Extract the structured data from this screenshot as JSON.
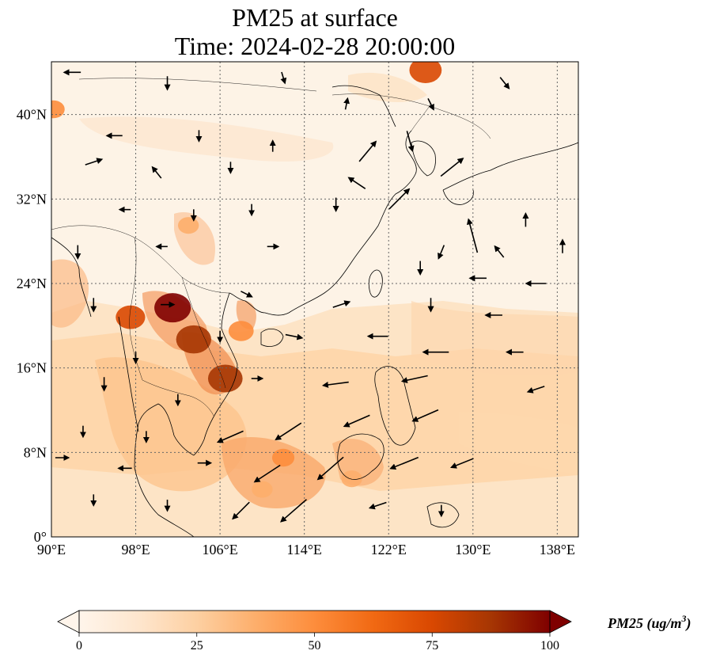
{
  "title": {
    "line1": "PM25 at surface",
    "line2": "Time: 2024-02-28 20:00:00"
  },
  "map": {
    "lon_range": [
      90,
      140
    ],
    "lat_range": [
      0,
      45
    ],
    "lon_ticks": [
      90,
      98,
      106,
      114,
      122,
      130,
      138
    ],
    "lat_ticks": [
      0,
      8,
      16,
      24,
      32,
      40
    ],
    "lon_tick_labels": [
      "90°E",
      "98°E",
      "106°E",
      "114°E",
      "122°E",
      "130°E",
      "138°E"
    ],
    "lat_tick_labels": [
      "0°",
      "8°N",
      "16°N",
      "24°N",
      "32°N",
      "40°N"
    ],
    "grid": true,
    "field": "PM25 concentration with surface wind vectors",
    "hotspots": [
      {
        "lon": 101.5,
        "lat": 21.7,
        "value": 95
      },
      {
        "lon": 103.5,
        "lat": 18.7,
        "value": 90
      },
      {
        "lon": 106.5,
        "lat": 15.0,
        "value": 88
      },
      {
        "lon": 97.5,
        "lat": 20.8,
        "value": 70
      },
      {
        "lon": 112.0,
        "lat": 7.5,
        "value": 45
      },
      {
        "lon": 110.0,
        "lat": 4.5,
        "value": 40
      },
      {
        "lon": 118.5,
        "lat": 5.5,
        "value": 40
      },
      {
        "lon": 103.0,
        "lat": 29.5,
        "value": 40
      },
      {
        "lon": 108.0,
        "lat": 19.5,
        "value": 55
      },
      {
        "lon": 125.5,
        "lat": 44.2,
        "value": 80
      },
      {
        "lon": 90.2,
        "lat": 40.5,
        "value": 45
      }
    ],
    "wind_vectors": [
      {
        "lon": 92.0,
        "lat": 44.0,
        "u": -1.5,
        "v": 0.0
      },
      {
        "lon": 101.0,
        "lat": 43.0,
        "u": 0.0,
        "v": -1.2
      },
      {
        "lon": 112.0,
        "lat": 43.5,
        "u": 0.3,
        "v": -1.0
      },
      {
        "lon": 118.0,
        "lat": 41.0,
        "u": 0.2,
        "v": 1.0
      },
      {
        "lon": 126.0,
        "lat": 41.0,
        "u": 0.5,
        "v": -1.0
      },
      {
        "lon": 133.0,
        "lat": 43.0,
        "u": 0.8,
        "v": -1.0
      },
      {
        "lon": 96.0,
        "lat": 38.0,
        "u": -1.4,
        "v": 0.0
      },
      {
        "lon": 104.0,
        "lat": 38.0,
        "u": 0.0,
        "v": -1.0
      },
      {
        "lon": 111.0,
        "lat": 37.0,
        "u": 0.0,
        "v": 1.0
      },
      {
        "lon": 120.0,
        "lat": 36.5,
        "u": 1.5,
        "v": 1.8
      },
      {
        "lon": 124.0,
        "lat": 37.5,
        "u": 0.5,
        "v": -1.8
      },
      {
        "lon": 128.0,
        "lat": 35.0,
        "u": 2.0,
        "v": 1.6
      },
      {
        "lon": 94.0,
        "lat": 35.5,
        "u": 1.5,
        "v": 0.5
      },
      {
        "lon": 100.0,
        "lat": 34.5,
        "u": -0.8,
        "v": 1.0
      },
      {
        "lon": 107.0,
        "lat": 35.0,
        "u": 0.0,
        "v": -1.0
      },
      {
        "lon": 119.0,
        "lat": 33.5,
        "u": -1.5,
        "v": 1.0
      },
      {
        "lon": 123.0,
        "lat": 32.0,
        "u": 1.8,
        "v": 1.8
      },
      {
        "lon": 130.0,
        "lat": 28.5,
        "u": -0.8,
        "v": 3.0
      },
      {
        "lon": 135.0,
        "lat": 30.0,
        "u": 0.0,
        "v": 1.2
      },
      {
        "lon": 97.0,
        "lat": 31.0,
        "u": -1.0,
        "v": 0.0
      },
      {
        "lon": 103.5,
        "lat": 30.5,
        "u": 0.0,
        "v": -1.0
      },
      {
        "lon": 109.0,
        "lat": 31.0,
        "u": 0.0,
        "v": -1.0
      },
      {
        "lon": 117.0,
        "lat": 31.5,
        "u": 0.0,
        "v": -1.2
      },
      {
        "lon": 127.0,
        "lat": 27.0,
        "u": -0.5,
        "v": -1.2
      },
      {
        "lon": 132.5,
        "lat": 27.0,
        "u": -0.8,
        "v": 1.0
      },
      {
        "lon": 138.5,
        "lat": 27.5,
        "u": 0.0,
        "v": 1.2
      },
      {
        "lon": 92.5,
        "lat": 27.0,
        "u": 0.0,
        "v": -1.2
      },
      {
        "lon": 100.5,
        "lat": 27.5,
        "u": -1.0,
        "v": 0.0
      },
      {
        "lon": 111.0,
        "lat": 27.5,
        "u": 1.0,
        "v": 0.0
      },
      {
        "lon": 125.0,
        "lat": 25.5,
        "u": 0.0,
        "v": -1.2
      },
      {
        "lon": 130.5,
        "lat": 24.5,
        "u": -1.5,
        "v": 0.0
      },
      {
        "lon": 136.0,
        "lat": 24.0,
        "u": -1.8,
        "v": 0.0
      },
      {
        "lon": 94.0,
        "lat": 22.0,
        "u": 0.0,
        "v": -1.2
      },
      {
        "lon": 101.0,
        "lat": 22.0,
        "u": 1.2,
        "v": 0.0
      },
      {
        "lon": 108.5,
        "lat": 23.0,
        "u": 1.0,
        "v": -0.5
      },
      {
        "lon": 117.5,
        "lat": 22.0,
        "u": 1.5,
        "v": 0.5
      },
      {
        "lon": 126.0,
        "lat": 22.0,
        "u": 0.0,
        "v": -1.2
      },
      {
        "lon": 132.0,
        "lat": 21.0,
        "u": -1.5,
        "v": 0.0
      },
      {
        "lon": 98.0,
        "lat": 17.0,
        "u": 0.0,
        "v": -1.0
      },
      {
        "lon": 106.0,
        "lat": 19.0,
        "u": 0.0,
        "v": -1.0
      },
      {
        "lon": 113.0,
        "lat": 19.0,
        "u": 1.5,
        "v": -0.3
      },
      {
        "lon": 121.0,
        "lat": 19.0,
        "u": -1.8,
        "v": 0.0
      },
      {
        "lon": 126.5,
        "lat": 17.5,
        "u": -2.3,
        "v": 0.0
      },
      {
        "lon": 134.0,
        "lat": 17.5,
        "u": -1.5,
        "v": 0.0
      },
      {
        "lon": 95.0,
        "lat": 14.5,
        "u": 0.0,
        "v": -1.2
      },
      {
        "lon": 102.0,
        "lat": 13.0,
        "u": 0.0,
        "v": -1.0
      },
      {
        "lon": 109.5,
        "lat": 15.0,
        "u": 1.0,
        "v": 0.0
      },
      {
        "lon": 117.0,
        "lat": 14.5,
        "u": -2.3,
        "v": -0.3
      },
      {
        "lon": 124.5,
        "lat": 15.0,
        "u": -2.3,
        "v": -0.5
      },
      {
        "lon": 136.0,
        "lat": 14.0,
        "u": -1.5,
        "v": -0.5
      },
      {
        "lon": 93.0,
        "lat": 10.0,
        "u": 0.0,
        "v": -1.0
      },
      {
        "lon": 99.0,
        "lat": 9.5,
        "u": 0.0,
        "v": -1.0
      },
      {
        "lon": 107.0,
        "lat": 9.5,
        "u": -2.3,
        "v": -1.0
      },
      {
        "lon": 112.5,
        "lat": 10.0,
        "u": -2.3,
        "v": -1.5
      },
      {
        "lon": 119.0,
        "lat": 11.0,
        "u": -2.3,
        "v": -1.0
      },
      {
        "lon": 125.5,
        "lat": 11.5,
        "u": -2.3,
        "v": -1.0
      },
      {
        "lon": 91.0,
        "lat": 7.5,
        "u": 1.2,
        "v": 0.0
      },
      {
        "lon": 97.0,
        "lat": 6.5,
        "u": -1.2,
        "v": 0.0
      },
      {
        "lon": 104.5,
        "lat": 7.0,
        "u": 1.2,
        "v": 0.0
      },
      {
        "lon": 110.5,
        "lat": 6.0,
        "u": -2.3,
        "v": -1.5
      },
      {
        "lon": 116.5,
        "lat": 6.5,
        "u": -2.3,
        "v": -2.0
      },
      {
        "lon": 123.5,
        "lat": 7.0,
        "u": -2.5,
        "v": -1.0
      },
      {
        "lon": 129.0,
        "lat": 7.0,
        "u": -2.0,
        "v": -0.8
      },
      {
        "lon": 94.0,
        "lat": 3.5,
        "u": 0.0,
        "v": -1.0
      },
      {
        "lon": 101.0,
        "lat": 3.0,
        "u": 0.0,
        "v": -1.0
      },
      {
        "lon": 108.0,
        "lat": 2.5,
        "u": -1.5,
        "v": -1.5
      },
      {
        "lon": 113.0,
        "lat": 2.5,
        "u": -2.3,
        "v": -2.0
      },
      {
        "lon": 121.0,
        "lat": 3.0,
        "u": -1.5,
        "v": -0.5
      },
      {
        "lon": 127.0,
        "lat": 2.5,
        "u": 0.0,
        "v": -1.0
      }
    ]
  },
  "colorbar": {
    "min": 0,
    "max": 100,
    "ticks": [
      "0",
      "25",
      "50",
      "75",
      "100"
    ],
    "stops": [
      "#fff5eb",
      "#fee6ce",
      "#fdd0a2",
      "#fdae6b",
      "#fd8d3c",
      "#f16913",
      "#d94801",
      "#a63603",
      "#7f0000"
    ],
    "label_text": "PM25 (ug/m",
    "label_sup": "3",
    "label_close": ")"
  }
}
